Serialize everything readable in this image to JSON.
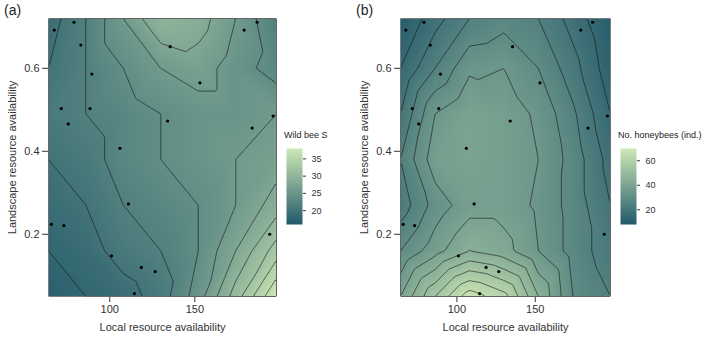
{
  "chart_data": [
    {
      "type": "contour",
      "title": "(a)",
      "x_label": "Local resource availability",
      "y_label": "Landscape resource availability",
      "xlim": [
        64,
        198
      ],
      "ylim": [
        0.05,
        0.72
      ],
      "xticks": [
        100,
        150
      ],
      "yticks": [
        0.2,
        0.4,
        0.6
      ],
      "grid_x": [
        64,
        86,
        108,
        130,
        152,
        174,
        198
      ],
      "grid_y": [
        0.05,
        0.16,
        0.27,
        0.38,
        0.49,
        0.6,
        0.72
      ],
      "cells": [
        [
          17,
          18,
          19,
          21,
          25,
          31,
          38
        ],
        [
          18,
          19,
          21,
          22,
          24,
          28,
          33
        ],
        [
          19,
          20,
          22,
          23,
          24,
          26,
          29
        ],
        [
          20,
          21,
          23,
          24,
          25,
          26,
          27
        ],
        [
          21,
          22,
          23,
          24,
          25,
          25,
          26
        ],
        [
          20,
          22,
          24,
          26,
          27,
          25,
          23
        ],
        [
          19,
          22,
          26,
          30,
          29,
          26,
          22
        ]
      ],
      "points": {
        "x": [
          67.4,
          79,
          83,
          89.5,
          88.4,
          71.5,
          75.6,
          106,
          111,
          65.7,
          73,
          101,
          118.6,
          126.7,
          114.5,
          135.5,
          153,
          134,
          179,
          186.6,
          183.7,
          196,
          194
        ],
        "y": [
          0.692,
          0.711,
          0.656,
          0.586,
          0.503,
          0.503,
          0.466,
          0.407,
          0.273,
          0.224,
          0.221,
          0.148,
          0.12,
          0.11,
          0.057,
          0.652,
          0.565,
          0.473,
          0.692,
          0.711,
          0.456,
          0.485,
          0.2
        ]
      },
      "colorbar": {
        "label": "Wild bee S",
        "range": [
          16,
          38
        ],
        "ticks": [
          20,
          25,
          30,
          35
        ],
        "colors": [
          "#22596a",
          "#cfe9b6"
        ]
      }
    },
    {
      "type": "contour",
      "title": "(b)",
      "x_label": "Local resource availability",
      "y_label": "Landscape resource availability",
      "xlim": [
        64,
        198
      ],
      "ylim": [
        0.05,
        0.72
      ],
      "xticks": [
        100,
        150
      ],
      "yticks": [
        0.2,
        0.4,
        0.6
      ],
      "grid_x": [
        64,
        86,
        108,
        130,
        152,
        174,
        198
      ],
      "grid_y": [
        0.05,
        0.16,
        0.27,
        0.38,
        0.49,
        0.6,
        0.72
      ],
      "cells": [
        [
          40,
          55,
          68,
          62,
          45,
          30,
          25
        ],
        [
          30,
          38,
          45,
          42,
          35,
          28,
          22
        ],
        [
          22,
          32,
          38,
          38,
          34,
          28,
          20
        ],
        [
          25,
          38,
          40,
          38,
          35,
          28,
          18
        ],
        [
          20,
          35,
          40,
          38,
          34,
          26,
          15
        ],
        [
          15,
          25,
          34,
          35,
          30,
          22,
          12
        ],
        [
          10,
          18,
          25,
          28,
          25,
          18,
          10
        ]
      ],
      "points": {
        "x": [
          67.4,
          79,
          83,
          89.5,
          88.4,
          71.5,
          75.6,
          106,
          111,
          65.7,
          73,
          101,
          118.6,
          126.7,
          114.5,
          135.5,
          153,
          134,
          179,
          186.6,
          183.7,
          196,
          194
        ],
        "y": [
          0.692,
          0.711,
          0.656,
          0.586,
          0.503,
          0.503,
          0.466,
          0.407,
          0.273,
          0.224,
          0.221,
          0.148,
          0.12,
          0.11,
          0.057,
          0.652,
          0.565,
          0.473,
          0.692,
          0.711,
          0.456,
          0.485,
          0.2
        ]
      },
      "colorbar": {
        "label": "No. honeybees (ind.)",
        "range": [
          8,
          70
        ],
        "ticks": [
          20,
          40,
          60
        ],
        "colors": [
          "#22596a",
          "#cfe9b6"
        ]
      }
    }
  ]
}
